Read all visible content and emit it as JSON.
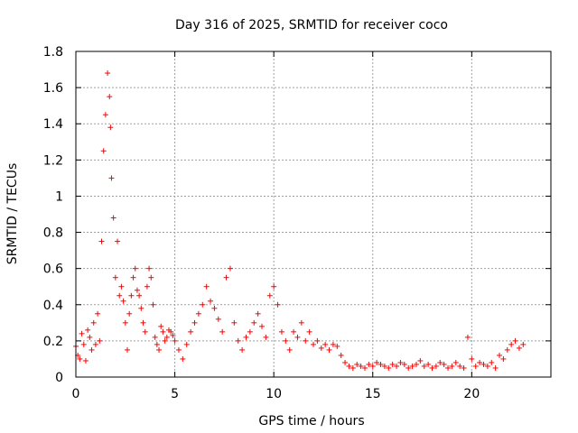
{
  "chart_data": {
    "type": "scatter",
    "title": "Day 316 of 2025, SRMTID for receiver coco",
    "xlabel": "GPS time / hours",
    "ylabel": "SRMTID / TECUs",
    "xlim": [
      0,
      24
    ],
    "ylim": [
      0,
      1.8
    ],
    "xticks": [
      0,
      5,
      10,
      15,
      20
    ],
    "xtick_labels": [
      "0",
      "5",
      "10",
      "15",
      "20"
    ],
    "yticks": [
      0,
      0.2,
      0.4,
      0.6,
      0.8,
      1.0,
      1.2,
      1.4,
      1.6,
      1.8
    ],
    "ytick_labels": [
      "0",
      "0.2",
      "0.4",
      "0.6",
      "0.8",
      "1",
      "1.2",
      "1.4",
      "1.6",
      "1.8"
    ],
    "grid": true,
    "marker": "+",
    "color": "#ff0000",
    "series": [
      {
        "name": "SRMTID",
        "x": [
          0.0,
          0.1,
          0.2,
          0.3,
          0.4,
          0.5,
          0.6,
          0.7,
          0.8,
          0.9,
          1.0,
          1.1,
          1.2,
          1.3,
          1.4,
          1.5,
          1.6,
          1.7,
          1.75,
          1.8,
          1.9,
          2.0,
          2.1,
          2.2,
          2.3,
          2.4,
          2.5,
          2.6,
          2.7,
          2.8,
          2.9,
          3.0,
          3.1,
          3.2,
          3.3,
          3.4,
          3.5,
          3.6,
          3.7,
          3.8,
          3.9,
          4.0,
          4.1,
          4.2,
          4.3,
          4.4,
          4.5,
          4.6,
          4.7,
          4.8,
          4.9,
          5.0,
          5.2,
          5.4,
          5.6,
          5.8,
          6.0,
          6.2,
          6.4,
          6.6,
          6.8,
          7.0,
          7.2,
          7.4,
          7.6,
          7.8,
          8.0,
          8.2,
          8.4,
          8.6,
          8.8,
          9.0,
          9.2,
          9.4,
          9.6,
          9.8,
          10.0,
          10.2,
          10.4,
          10.6,
          10.8,
          11.0,
          11.2,
          11.4,
          11.6,
          11.8,
          12.0,
          12.2,
          12.4,
          12.6,
          12.8,
          13.0,
          13.2,
          13.4,
          13.6,
          13.8,
          14.0,
          14.2,
          14.4,
          14.6,
          14.8,
          15.0,
          15.2,
          15.4,
          15.6,
          15.8,
          16.0,
          16.2,
          16.4,
          16.6,
          16.8,
          17.0,
          17.2,
          17.4,
          17.6,
          17.8,
          18.0,
          18.2,
          18.4,
          18.6,
          18.8,
          19.0,
          19.2,
          19.4,
          19.6,
          19.8,
          20.0,
          20.2,
          20.4,
          20.6,
          20.8,
          21.0,
          21.2,
          21.4,
          21.6,
          21.8,
          22.0,
          22.2,
          22.4,
          22.6
        ],
        "y": [
          0.17,
          0.12,
          0.1,
          0.24,
          0.18,
          0.09,
          0.26,
          0.22,
          0.15,
          0.3,
          0.18,
          0.35,
          0.2,
          0.75,
          1.25,
          1.45,
          1.68,
          1.55,
          1.38,
          1.1,
          0.88,
          0.55,
          0.75,
          0.45,
          0.5,
          0.42,
          0.3,
          0.15,
          0.35,
          0.45,
          0.55,
          0.6,
          0.48,
          0.45,
          0.38,
          0.3,
          0.25,
          0.5,
          0.6,
          0.55,
          0.4,
          0.22,
          0.18,
          0.15,
          0.28,
          0.25,
          0.2,
          0.22,
          0.26,
          0.25,
          0.23,
          0.2,
          0.15,
          0.1,
          0.18,
          0.25,
          0.3,
          0.35,
          0.4,
          0.5,
          0.42,
          0.38,
          0.32,
          0.25,
          0.55,
          0.6,
          0.3,
          0.2,
          0.15,
          0.22,
          0.25,
          0.3,
          0.35,
          0.28,
          0.22,
          0.45,
          0.5,
          0.4,
          0.25,
          0.2,
          0.15,
          0.25,
          0.22,
          0.3,
          0.2,
          0.25,
          0.18,
          0.2,
          0.16,
          0.18,
          0.15,
          0.18,
          0.17,
          0.12,
          0.08,
          0.06,
          0.05,
          0.07,
          0.06,
          0.05,
          0.07,
          0.06,
          0.08,
          0.07,
          0.06,
          0.05,
          0.07,
          0.06,
          0.08,
          0.07,
          0.05,
          0.06,
          0.07,
          0.09,
          0.06,
          0.07,
          0.05,
          0.06,
          0.08,
          0.07,
          0.05,
          0.06,
          0.08,
          0.06,
          0.05,
          0.22,
          0.1,
          0.06,
          0.08,
          0.07,
          0.06,
          0.08,
          0.05,
          0.12,
          0.1,
          0.15,
          0.18,
          0.2,
          0.16,
          0.18
        ]
      }
    ]
  }
}
